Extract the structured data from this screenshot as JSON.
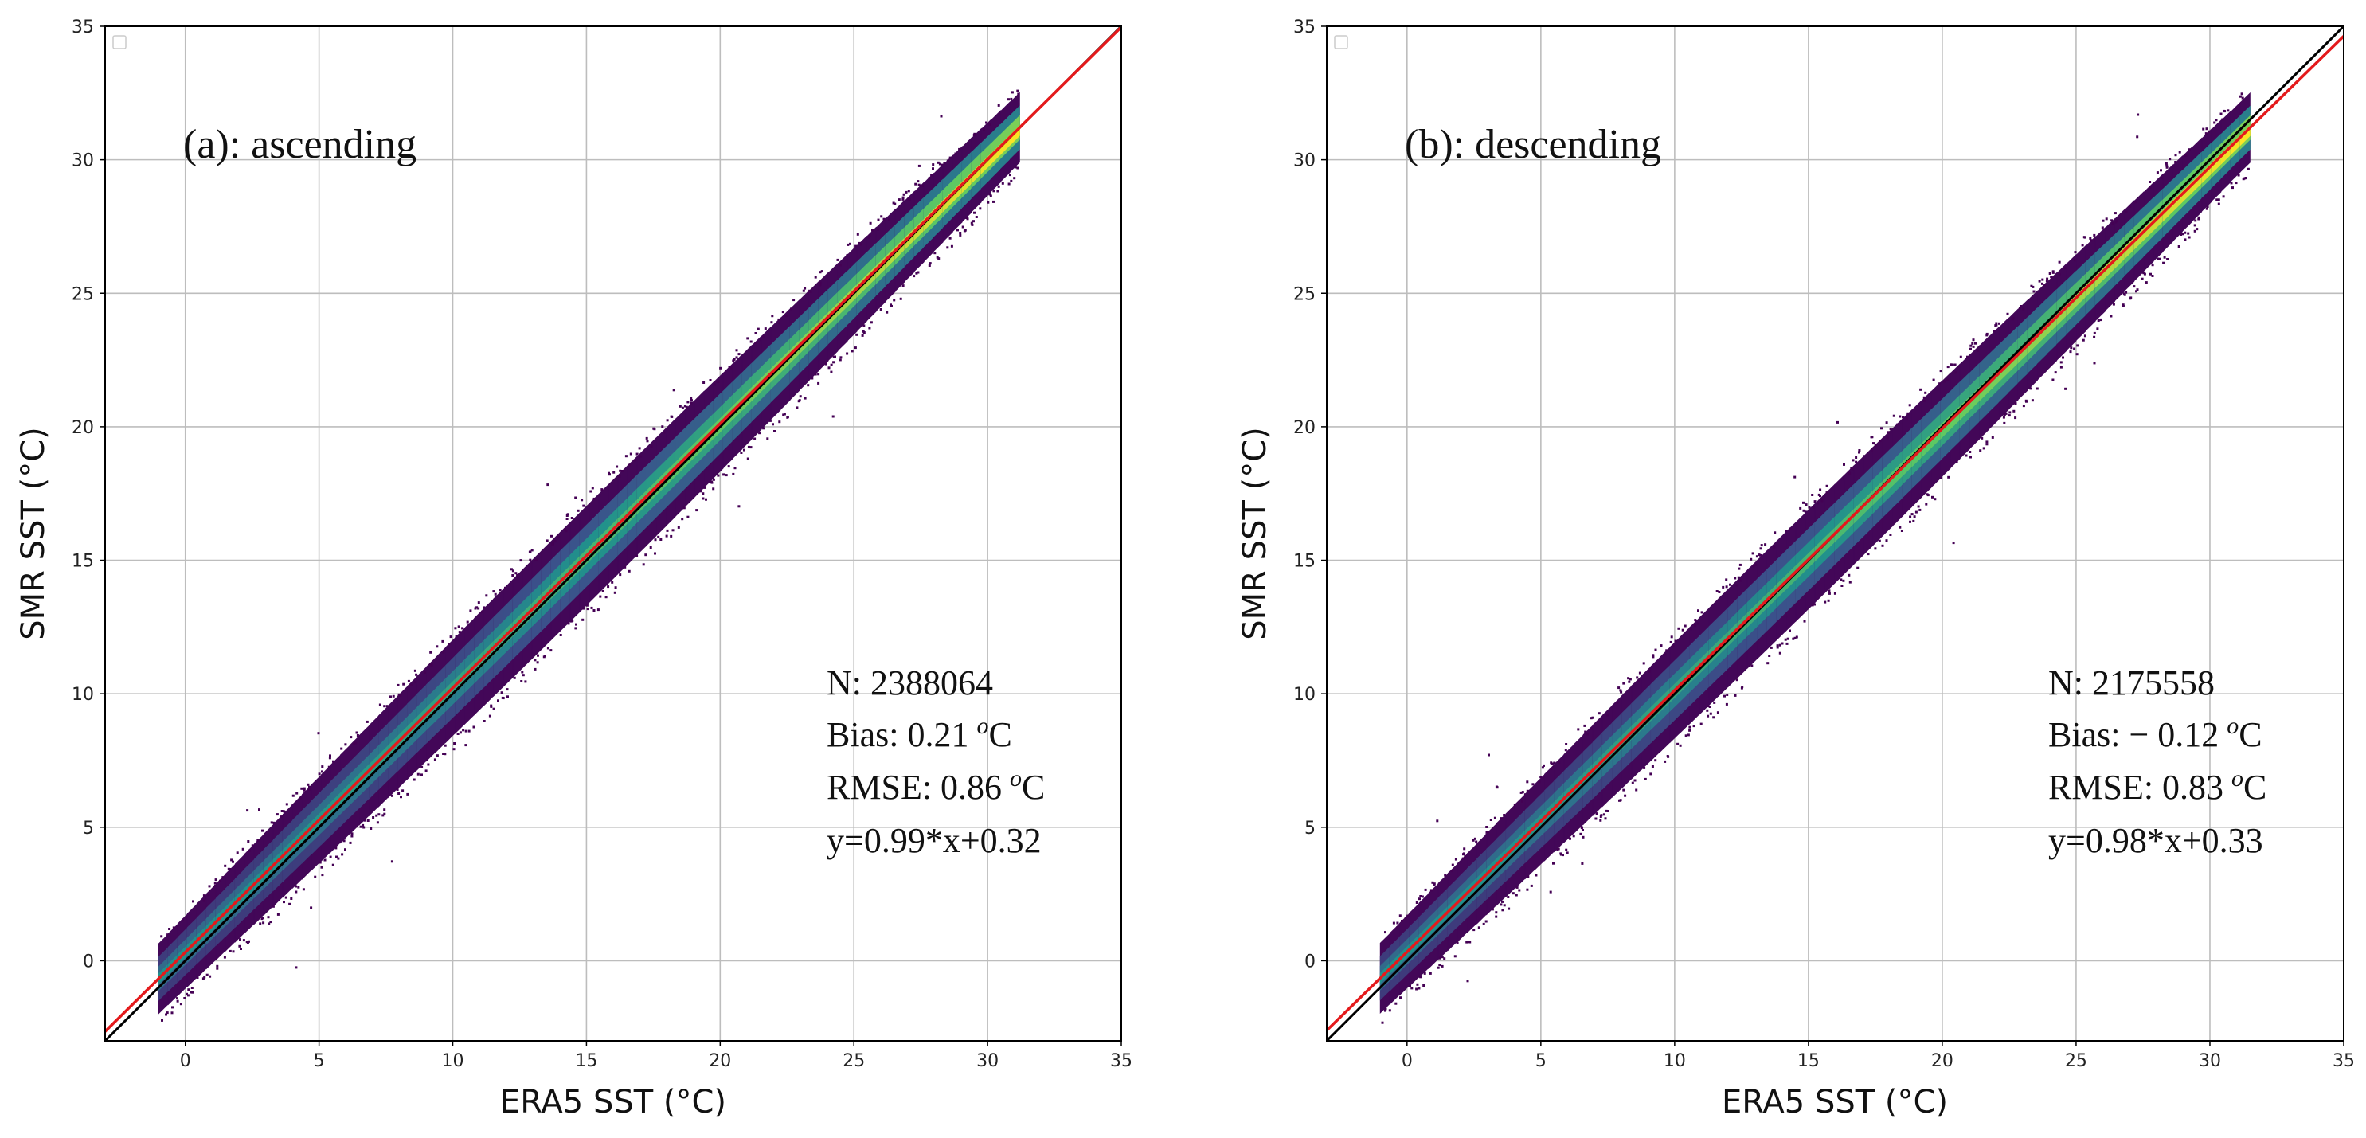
{
  "chart_data": [
    {
      "type": "scatter",
      "subtype": "density-heatmap",
      "panel_label": "(a): ascending",
      "xlabel": "ERA5 SST (°C)",
      "ylabel": "SMR SST (°C)",
      "xlim": [
        -3,
        35
      ],
      "ylim": [
        -3,
        35
      ],
      "xticks": [
        0,
        5,
        10,
        15,
        20,
        25,
        30,
        35
      ],
      "yticks": [
        0,
        5,
        10,
        15,
        20,
        25,
        30,
        35
      ],
      "grid": true,
      "legend": "top-left (empty)",
      "data_range": [
        -1,
        31.2
      ],
      "reference_line": {
        "name": "1:1",
        "slope": 1,
        "intercept": 0,
        "color": "#000000"
      },
      "fit_line": {
        "name": "fit",
        "slope": 0.99,
        "intercept": 0.32,
        "color": "#e41a1c"
      },
      "stats": {
        "n": "N: 2388064",
        "bias": "Bias:  0.21",
        "rmse": "RMSE: 0.86",
        "fit": "y=0.99*x+0.32",
        "unit_sup": "o",
        "unit_c": "C"
      }
    },
    {
      "type": "scatter",
      "subtype": "density-heatmap",
      "panel_label": "(b): descending",
      "xlabel": "ERA5 SST (°C)",
      "ylabel": "SMR SST (°C)",
      "xlim": [
        -3,
        35
      ],
      "ylim": [
        -3,
        35
      ],
      "xticks": [
        0,
        5,
        10,
        15,
        20,
        25,
        30,
        35
      ],
      "yticks": [
        0,
        5,
        10,
        15,
        20,
        25,
        30,
        35
      ],
      "grid": true,
      "legend": "top-left (empty)",
      "data_range": [
        -1,
        31.5
      ],
      "reference_line": {
        "name": "1:1",
        "slope": 1,
        "intercept": 0,
        "color": "#000000"
      },
      "fit_line": {
        "name": "fit",
        "slope": 0.98,
        "intercept": 0.33,
        "color": "#e41a1c"
      },
      "stats": {
        "n": "N: 2175558",
        "bias": "Bias: − 0.12",
        "rmse": "RMSE: 0.83",
        "fit": "y=0.98*x+0.33",
        "unit_sup": "o",
        "unit_c": "C"
      }
    }
  ],
  "colormap": [
    "#440154",
    "#3b528b",
    "#21918c",
    "#5ec962",
    "#fde725"
  ]
}
